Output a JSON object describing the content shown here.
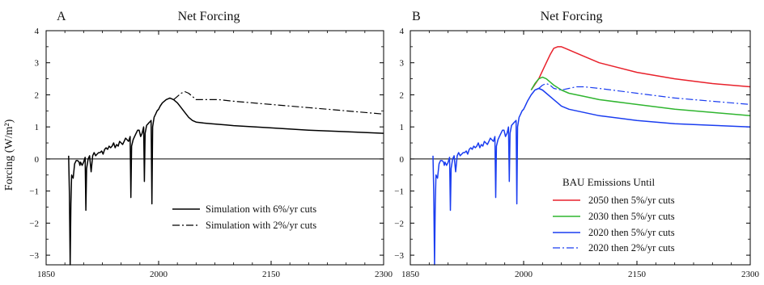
{
  "chart_data": [
    {
      "type": "line",
      "panel_letter": "A",
      "title": "Net Forcing",
      "ylabel": "Forcing (W/m²)",
      "xlabel": "",
      "xlim": [
        1850,
        2300
      ],
      "ylim": [
        -3.3,
        4
      ],
      "xticks": [
        "1850",
        "2000",
        "2150",
        "2300"
      ],
      "yticks": [
        "4",
        "3",
        "2",
        "1",
        "0",
        "−1",
        "−2",
        "−3"
      ],
      "x_tick_values": [
        1850,
        2000,
        2150,
        2300
      ],
      "y_tick_values": [
        4,
        3,
        2,
        1,
        0,
        -1,
        -2,
        -3
      ],
      "legend": {
        "placement": "lower-right"
      },
      "series": [
        {
          "name": "Simulation with 6%/yr cuts",
          "color": "#000000",
          "dash": "solid",
          "x": [
            1880,
            1881,
            1882,
            1883,
            1884,
            1886,
            1888,
            1890,
            1892,
            1894,
            1895,
            1896,
            1898,
            1900,
            1902,
            1903,
            1904,
            1906,
            1908,
            1910,
            1912,
            1914,
            1916,
            1918,
            1920,
            1922,
            1924,
            1926,
            1928,
            1930,
            1932,
            1934,
            1936,
            1938,
            1940,
            1942,
            1944,
            1946,
            1948,
            1950,
            1952,
            1954,
            1956,
            1958,
            1960,
            1962,
            1963,
            1964,
            1966,
            1968,
            1970,
            1972,
            1974,
            1976,
            1978,
            1980,
            1981,
            1982,
            1984,
            1986,
            1988,
            1990,
            1991,
            1992,
            1994,
            1996,
            1998,
            2000,
            2002,
            2005,
            2010,
            2015,
            2020,
            2025,
            2030,
            2035,
            2040,
            2045,
            2050,
            2060,
            2070,
            2080,
            2090,
            2100,
            2150,
            2200,
            2250,
            2300
          ],
          "y": [
            0.1,
            -1.0,
            -3.3,
            -1.4,
            -0.5,
            -0.6,
            -0.15,
            -0.05,
            -0.05,
            -0.1,
            -0.2,
            -0.1,
            -0.2,
            -0.1,
            0.05,
            -1.6,
            -0.3,
            0.0,
            0.1,
            -0.4,
            0.1,
            0.2,
            0.1,
            0.15,
            0.2,
            0.2,
            0.25,
            0.15,
            0.3,
            0.35,
            0.3,
            0.4,
            0.35,
            0.4,
            0.5,
            0.35,
            0.45,
            0.4,
            0.55,
            0.5,
            0.45,
            0.55,
            0.65,
            0.6,
            0.55,
            0.7,
            -1.2,
            0.4,
            0.6,
            0.7,
            0.8,
            0.9,
            0.9,
            0.7,
            0.8,
            1.0,
            -0.7,
            0.8,
            1.05,
            1.1,
            1.15,
            1.2,
            -1.4,
            1.0,
            1.3,
            1.4,
            1.5,
            1.55,
            1.65,
            1.75,
            1.85,
            1.9,
            1.85,
            1.75,
            1.6,
            1.45,
            1.3,
            1.2,
            1.15,
            1.12,
            1.1,
            1.08,
            1.06,
            1.04,
            0.97,
            0.9,
            0.85,
            0.8
          ]
        },
        {
          "name": "Simulation with 2%/yr cuts",
          "color": "#000000",
          "dash": "dashdot",
          "x": [
            2020,
            2025,
            2030,
            2035,
            2040,
            2045,
            2050,
            2060,
            2080,
            2100,
            2150,
            2200,
            2250,
            2300
          ],
          "y": [
            1.85,
            1.95,
            2.05,
            2.1,
            2.05,
            1.95,
            1.85,
            1.85,
            1.85,
            1.8,
            1.7,
            1.6,
            1.5,
            1.4
          ]
        }
      ]
    },
    {
      "type": "line",
      "panel_letter": "B",
      "title": "Net Forcing",
      "ylabel": "",
      "xlabel": "",
      "xlim": [
        1850,
        2300
      ],
      "ylim": [
        -3.3,
        4
      ],
      "xticks": [
        "1850",
        "2000",
        "2150",
        "2300"
      ],
      "yticks": [
        "4",
        "3",
        "2",
        "1",
        "0",
        "−1",
        "−2",
        "−3"
      ],
      "x_tick_values": [
        1850,
        2000,
        2150,
        2300
      ],
      "y_tick_values": [
        4,
        3,
        2,
        1,
        0,
        -1,
        -2,
        -3
      ],
      "legend": {
        "title": "BAU Emissions Until",
        "placement": "lower-right"
      },
      "series": [
        {
          "name": "2050 then 5%/yr cuts",
          "color": "#e8212b",
          "dash": "solid",
          "x": [
            2010,
            2020,
            2025,
            2030,
            2035,
            2040,
            2045,
            2050,
            2055,
            2060,
            2070,
            2080,
            2100,
            2150,
            2200,
            2250,
            2300
          ],
          "y": [
            2.15,
            2.5,
            2.75,
            3.0,
            3.25,
            3.45,
            3.5,
            3.5,
            3.45,
            3.4,
            3.3,
            3.2,
            3.0,
            2.7,
            2.5,
            2.35,
            2.25
          ]
        },
        {
          "name": "2030 then 5%/yr cuts",
          "color": "#2fb52f",
          "dash": "solid",
          "x": [
            2010,
            2015,
            2020,
            2025,
            2030,
            2035,
            2040,
            2050,
            2060,
            2080,
            2100,
            2150,
            2200,
            2250,
            2300
          ],
          "y": [
            2.15,
            2.35,
            2.5,
            2.55,
            2.5,
            2.4,
            2.3,
            2.15,
            2.05,
            1.95,
            1.85,
            1.7,
            1.55,
            1.45,
            1.35
          ]
        },
        {
          "name": "2020 then 5%/yr cuts",
          "color": "#1a3df0",
          "dash": "solid",
          "x": [
            1880,
            1881,
            1882,
            1883,
            1884,
            1886,
            1888,
            1890,
            1892,
            1894,
            1895,
            1896,
            1898,
            1900,
            1902,
            1903,
            1904,
            1906,
            1908,
            1910,
            1912,
            1914,
            1916,
            1918,
            1920,
            1922,
            1924,
            1926,
            1928,
            1930,
            1932,
            1934,
            1936,
            1938,
            1940,
            1942,
            1944,
            1946,
            1948,
            1950,
            1952,
            1954,
            1956,
            1958,
            1960,
            1962,
            1963,
            1964,
            1966,
            1968,
            1970,
            1972,
            1974,
            1976,
            1978,
            1980,
            1981,
            1982,
            1984,
            1986,
            1988,
            1990,
            1991,
            1992,
            1994,
            1996,
            1998,
            2000,
            2002,
            2005,
            2010,
            2015,
            2020,
            2025,
            2030,
            2040,
            2050,
            2060,
            2080,
            2100,
            2150,
            2200,
            2250,
            2300
          ],
          "y": [
            0.1,
            -1.0,
            -3.3,
            -1.4,
            -0.5,
            -0.6,
            -0.15,
            -0.05,
            -0.05,
            -0.1,
            -0.2,
            -0.1,
            -0.2,
            -0.1,
            0.05,
            -1.6,
            -0.3,
            0.0,
            0.1,
            -0.4,
            0.1,
            0.2,
            0.1,
            0.15,
            0.2,
            0.2,
            0.25,
            0.15,
            0.3,
            0.35,
            0.3,
            0.4,
            0.35,
            0.4,
            0.5,
            0.35,
            0.45,
            0.4,
            0.55,
            0.5,
            0.45,
            0.55,
            0.65,
            0.6,
            0.55,
            0.7,
            -1.2,
            0.4,
            0.6,
            0.7,
            0.8,
            0.9,
            0.9,
            0.7,
            0.8,
            1.0,
            -0.7,
            0.8,
            1.05,
            1.1,
            1.15,
            1.2,
            -1.4,
            1.0,
            1.3,
            1.4,
            1.5,
            1.55,
            1.65,
            1.8,
            2.0,
            2.15,
            2.2,
            2.15,
            2.05,
            1.85,
            1.65,
            1.55,
            1.45,
            1.35,
            1.2,
            1.1,
            1.05,
            1.0
          ]
        },
        {
          "name": "2020 then 2%/yr cuts",
          "color": "#1a3df0",
          "dash": "dashdot",
          "x": [
            2020,
            2025,
            2030,
            2035,
            2040,
            2050,
            2060,
            2070,
            2080,
            2100,
            2150,
            2200,
            2250,
            2300
          ],
          "y": [
            2.2,
            2.3,
            2.35,
            2.3,
            2.2,
            2.15,
            2.2,
            2.25,
            2.25,
            2.2,
            2.05,
            1.9,
            1.8,
            1.7
          ]
        }
      ]
    }
  ]
}
